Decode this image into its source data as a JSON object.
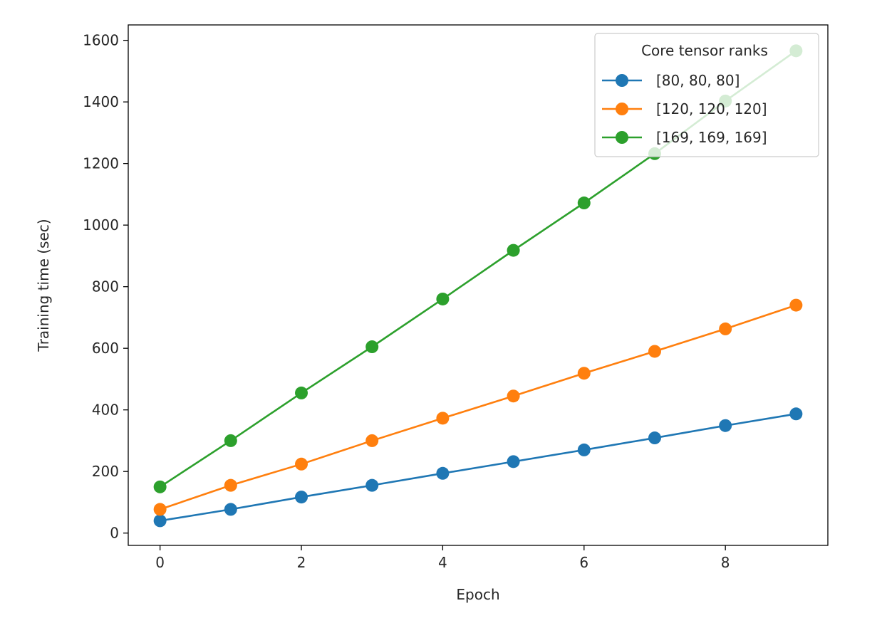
{
  "chart_data": {
    "type": "line",
    "title": "",
    "xlabel": "Epoch",
    "ylabel": "Training time (sec)",
    "x": [
      0,
      1,
      2,
      3,
      4,
      5,
      6,
      7,
      8,
      9
    ],
    "xticks": [
      0,
      2,
      4,
      6,
      8
    ],
    "yticks": [
      0,
      200,
      400,
      600,
      800,
      1000,
      1200,
      1400,
      1600
    ],
    "xlim": [
      -0.45,
      9.45
    ],
    "ylim": [
      -40,
      1650
    ],
    "grid": false,
    "legend": {
      "title": "Core tensor ranks",
      "location": "top-right"
    },
    "series": [
      {
        "name": "[80, 80, 80]",
        "color": "#1f77b4",
        "marker": "circle",
        "values": [
          40,
          77,
          117,
          155,
          194,
          232,
          270,
          309,
          349,
          387
        ]
      },
      {
        "name": "[120, 120, 120]",
        "color": "#ff7f0e",
        "marker": "circle",
        "values": [
          77,
          155,
          224,
          300,
          373,
          445,
          519,
          590,
          663,
          740
        ]
      },
      {
        "name": "[169, 169, 169]",
        "color": "#2ca02c",
        "marker": "circle",
        "values": [
          150,
          300,
          455,
          605,
          760,
          918,
          1072,
          1232,
          1403,
          1566
        ]
      }
    ]
  }
}
